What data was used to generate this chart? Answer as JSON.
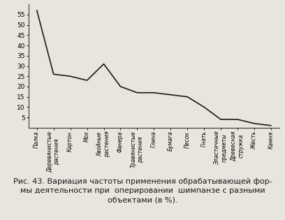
{
  "categories": [
    "Палка",
    "Деревянистые\nрастения",
    "Картон",
    "Мох",
    "Хвойные\nрастения",
    "Фанера",
    "Травянистые\nрастения",
    "Глина",
    "Бумага",
    "Песок",
    "Гнать",
    "Эластичные\nпредметы",
    "Древесная\nстружка",
    "Жесть",
    "Камня"
  ],
  "values": [
    57,
    26,
    25,
    23,
    31,
    20,
    17,
    17,
    16,
    15,
    10,
    4,
    4,
    2,
    1
  ],
  "yticks": [
    5,
    10,
    15,
    20,
    25,
    30,
    35,
    40,
    45,
    50,
    55
  ],
  "ylim": [
    0,
    60
  ],
  "line_color": "#1a1a1a",
  "line_width": 1.2,
  "background_color": "#e8e5de",
  "font_size_yticks": 6.5,
  "font_size_xlabel": 5.5,
  "caption": "Рис. 43. Вариация частоты применения обрабатывающей фор-\nмы деятельности при  оперировании  шимпанзе с разными\nобъектами (в %).",
  "caption_fontsize": 8.0
}
